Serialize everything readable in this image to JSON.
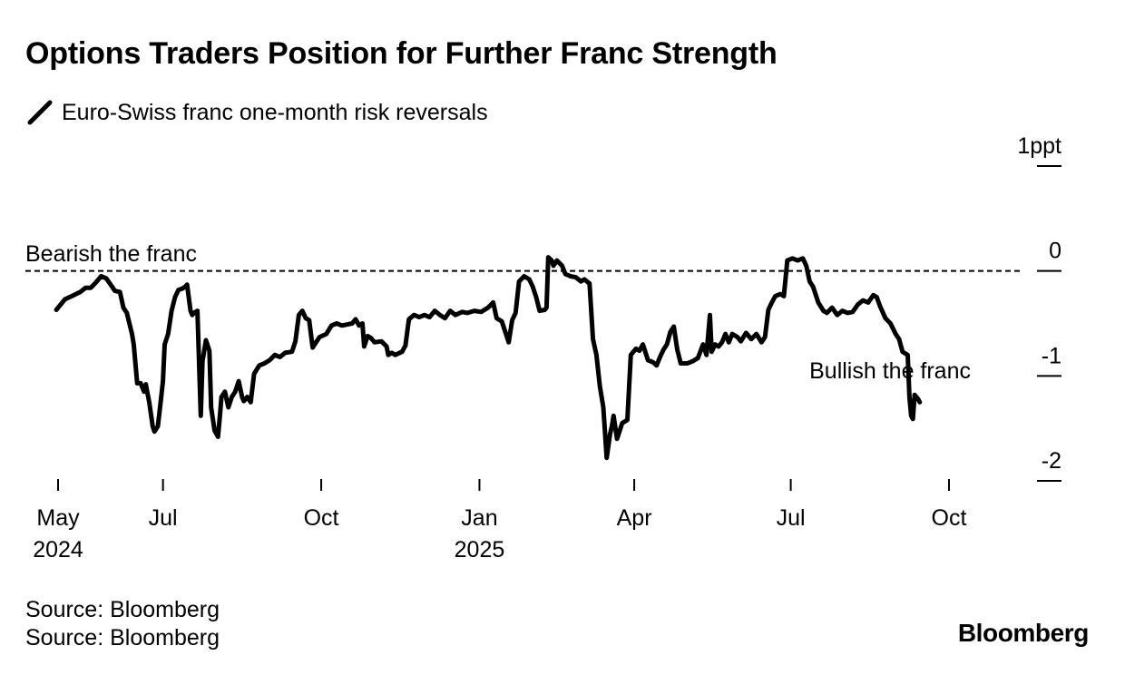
{
  "title": "Options Traders Position for Further Franc Strength",
  "legend": {
    "label": "Euro-Swiss franc one-month risk reversals",
    "icon": "line-swatch-icon"
  },
  "source_lines": [
    "Source: Bloomberg",
    "Source: Bloomberg"
  ],
  "brand": "Bloomberg",
  "colors": {
    "line": "#000000",
    "background": "#ffffff",
    "reference": "#000000"
  },
  "chart_data": {
    "type": "line",
    "title": "Options Traders Position for Further Franc Strength",
    "xlabel": "",
    "ylabel": "",
    "unit": "ppt",
    "ylim": [
      -2,
      1
    ],
    "yticks": [
      {
        "value": 1,
        "label": "1ppt"
      },
      {
        "value": 0,
        "label": "0"
      },
      {
        "value": -1,
        "label": "-1"
      },
      {
        "value": -2,
        "label": "-2"
      }
    ],
    "xlim": [
      "2024-05-01",
      "2025-11-05"
    ],
    "xticks": [
      {
        "date": "2024-05-01",
        "label": "May",
        "sublabel": "2024"
      },
      {
        "date": "2024-07-01",
        "label": "Jul",
        "sublabel": ""
      },
      {
        "date": "2024-10-01",
        "label": "Oct",
        "sublabel": ""
      },
      {
        "date": "2025-01-01",
        "label": "Jan",
        "sublabel": "2025"
      },
      {
        "date": "2025-04-01",
        "label": "Apr",
        "sublabel": ""
      },
      {
        "date": "2025-07-01",
        "label": "Jul",
        "sublabel": ""
      },
      {
        "date": "2025-10-01",
        "label": "Oct",
        "sublabel": ""
      }
    ],
    "grid": false,
    "legend_position": "top-left",
    "y_axis_side": "right",
    "reference_line": {
      "value": 0,
      "style": "dashed"
    },
    "annotations": [
      {
        "text": "Bearish the franc",
        "position": "above reference line, left"
      },
      {
        "text": "Bullish the franc",
        "position": "below reference line, right"
      }
    ],
    "series": [
      {
        "name": "Euro-Swiss franc one-month risk reversals",
        "points": [
          [
            "2024-04-30",
            -0.37
          ],
          [
            "2024-05-02",
            -0.33
          ],
          [
            "2024-05-05",
            -0.27
          ],
          [
            "2024-05-09",
            -0.24
          ],
          [
            "2024-05-14",
            -0.2
          ],
          [
            "2024-05-17",
            -0.16
          ],
          [
            "2024-05-20",
            -0.16
          ],
          [
            "2024-05-23",
            -0.11
          ],
          [
            "2024-05-26",
            -0.05
          ],
          [
            "2024-05-29",
            -0.07
          ],
          [
            "2024-06-01",
            -0.14
          ],
          [
            "2024-06-03",
            -0.19
          ],
          [
            "2024-06-06",
            -0.2
          ],
          [
            "2024-06-08",
            -0.35
          ],
          [
            "2024-06-10",
            -0.4
          ],
          [
            "2024-06-13",
            -0.6
          ],
          [
            "2024-06-14",
            -0.7
          ],
          [
            "2024-06-16",
            -1.07
          ],
          [
            "2024-06-18",
            -1.07
          ],
          [
            "2024-06-20",
            -1.15
          ],
          [
            "2024-06-21",
            -1.08
          ],
          [
            "2024-06-23",
            -1.25
          ],
          [
            "2024-06-25",
            -1.48
          ],
          [
            "2024-06-26",
            -1.53
          ],
          [
            "2024-06-28",
            -1.48
          ],
          [
            "2024-06-30",
            -1.2
          ],
          [
            "2024-07-01",
            -1.05
          ],
          [
            "2024-07-02",
            -0.7
          ],
          [
            "2024-07-04",
            -0.6
          ],
          [
            "2024-07-06",
            -0.38
          ],
          [
            "2024-07-08",
            -0.25
          ],
          [
            "2024-07-10",
            -0.18
          ],
          [
            "2024-07-12",
            -0.17
          ],
          [
            "2024-07-14",
            -0.15
          ],
          [
            "2024-07-15",
            -0.13
          ],
          [
            "2024-07-17",
            -0.38
          ],
          [
            "2024-07-18",
            -0.42
          ],
          [
            "2024-07-19",
            -0.4
          ],
          [
            "2024-07-21",
            -0.38
          ],
          [
            "2024-07-23",
            -1.38
          ],
          [
            "2024-07-24",
            -0.86
          ],
          [
            "2024-07-25",
            -0.76
          ],
          [
            "2024-07-26",
            -0.66
          ],
          [
            "2024-07-28",
            -0.76
          ],
          [
            "2024-07-29",
            -1.3
          ],
          [
            "2024-07-31",
            -1.52
          ],
          [
            "2024-08-02",
            -1.58
          ],
          [
            "2024-08-03",
            -1.4
          ],
          [
            "2024-08-04",
            -1.2
          ],
          [
            "2024-08-06",
            -1.15
          ],
          [
            "2024-08-08",
            -1.3
          ],
          [
            "2024-08-10",
            -1.2
          ],
          [
            "2024-08-12",
            -1.15
          ],
          [
            "2024-08-14",
            -1.05
          ],
          [
            "2024-08-16",
            -1.2
          ],
          [
            "2024-08-17",
            -1.24
          ],
          [
            "2024-08-19",
            -1.2
          ],
          [
            "2024-08-21",
            -1.25
          ],
          [
            "2024-08-23",
            -0.98
          ],
          [
            "2024-08-26",
            -0.9
          ],
          [
            "2024-08-29",
            -0.88
          ],
          [
            "2024-09-01",
            -0.85
          ],
          [
            "2024-09-04",
            -0.8
          ],
          [
            "2024-09-07",
            -0.82
          ],
          [
            "2024-09-10",
            -0.78
          ],
          [
            "2024-09-14",
            -0.77
          ],
          [
            "2024-09-16",
            -0.67
          ],
          [
            "2024-09-18",
            -0.42
          ],
          [
            "2024-09-20",
            -0.38
          ],
          [
            "2024-09-22",
            -0.45
          ],
          [
            "2024-09-24",
            -0.47
          ],
          [
            "2024-09-26",
            -0.73
          ],
          [
            "2024-09-28",
            -0.68
          ],
          [
            "2024-09-30",
            -0.63
          ],
          [
            "2024-10-04",
            -0.6
          ],
          [
            "2024-10-07",
            -0.52
          ],
          [
            "2024-10-10",
            -0.5
          ],
          [
            "2024-10-13",
            -0.52
          ],
          [
            "2024-10-16",
            -0.51
          ],
          [
            "2024-10-19",
            -0.5
          ],
          [
            "2024-10-21",
            -0.46
          ],
          [
            "2024-10-23",
            -0.52
          ],
          [
            "2024-10-25",
            -0.5
          ],
          [
            "2024-10-26",
            -0.72
          ],
          [
            "2024-10-28",
            -0.62
          ],
          [
            "2024-10-30",
            -0.64
          ],
          [
            "2024-11-01",
            -0.68
          ],
          [
            "2024-11-05",
            -0.67
          ],
          [
            "2024-11-08",
            -0.72
          ],
          [
            "2024-11-09",
            -0.8
          ],
          [
            "2024-11-11",
            -0.78
          ],
          [
            "2024-11-13",
            -0.8
          ],
          [
            "2024-11-17",
            -0.77
          ],
          [
            "2024-11-19",
            -0.71
          ],
          [
            "2024-11-21",
            -0.46
          ],
          [
            "2024-11-24",
            -0.42
          ],
          [
            "2024-11-27",
            -0.44
          ],
          [
            "2024-11-30",
            -0.42
          ],
          [
            "2024-12-03",
            -0.44
          ],
          [
            "2024-12-06",
            -0.38
          ],
          [
            "2024-12-09",
            -0.42
          ],
          [
            "2024-12-12",
            -0.45
          ],
          [
            "2024-12-15",
            -0.38
          ],
          [
            "2024-12-18",
            -0.42
          ],
          [
            "2024-12-22",
            -0.39
          ],
          [
            "2024-12-25",
            -0.4
          ],
          [
            "2024-12-29",
            -0.38
          ],
          [
            "2025-01-02",
            -0.39
          ],
          [
            "2025-01-06",
            -0.35
          ],
          [
            "2025-01-09",
            -0.3
          ],
          [
            "2025-01-11",
            -0.45
          ],
          [
            "2025-01-14",
            -0.48
          ],
          [
            "2025-01-17",
            -0.63
          ],
          [
            "2025-01-18",
            -0.68
          ],
          [
            "2025-01-20",
            -0.47
          ],
          [
            "2025-01-22",
            -0.4
          ],
          [
            "2025-01-24",
            -0.1
          ],
          [
            "2025-01-27",
            -0.05
          ],
          [
            "2025-01-30",
            -0.08
          ],
          [
            "2025-02-01",
            -0.15
          ],
          [
            "2025-02-03",
            -0.25
          ],
          [
            "2025-02-05",
            -0.38
          ],
          [
            "2025-02-08",
            -0.37
          ],
          [
            "2025-02-09",
            -0.35
          ],
          [
            "2025-02-10",
            0.13
          ],
          [
            "2025-02-12",
            0.1
          ],
          [
            "2025-02-13",
            0.05
          ],
          [
            "2025-02-15",
            0.1
          ],
          [
            "2025-02-18",
            0.05
          ],
          [
            "2025-02-20",
            -0.03
          ],
          [
            "2025-02-23",
            -0.05
          ],
          [
            "2025-02-26",
            -0.06
          ],
          [
            "2025-03-01",
            -0.1
          ],
          [
            "2025-03-03",
            -0.08
          ],
          [
            "2025-03-06",
            -0.12
          ],
          [
            "2025-03-08",
            -0.65
          ],
          [
            "2025-03-10",
            -0.8
          ],
          [
            "2025-03-12",
            -1.1
          ],
          [
            "2025-03-14",
            -1.3
          ],
          [
            "2025-03-16",
            -1.78
          ],
          [
            "2025-03-18",
            -1.55
          ],
          [
            "2025-03-19",
            -1.48
          ],
          [
            "2025-03-20",
            -1.38
          ],
          [
            "2025-03-22",
            -1.6
          ],
          [
            "2025-03-25",
            -1.45
          ],
          [
            "2025-03-28",
            -1.42
          ],
          [
            "2025-03-30",
            -0.8
          ],
          [
            "2025-04-02",
            -0.74
          ],
          [
            "2025-04-04",
            -0.76
          ],
          [
            "2025-04-06",
            -0.7
          ],
          [
            "2025-04-09",
            -0.85
          ],
          [
            "2025-04-12",
            -0.87
          ],
          [
            "2025-04-14",
            -0.9
          ],
          [
            "2025-04-16",
            -0.82
          ],
          [
            "2025-04-18",
            -0.75
          ],
          [
            "2025-04-20",
            -0.7
          ],
          [
            "2025-04-22",
            -0.58
          ],
          [
            "2025-04-24",
            -0.53
          ],
          [
            "2025-04-26",
            -0.75
          ],
          [
            "2025-04-28",
            -0.88
          ],
          [
            "2025-05-02",
            -0.88
          ],
          [
            "2025-05-05",
            -0.86
          ],
          [
            "2025-05-08",
            -0.83
          ],
          [
            "2025-05-11",
            -0.7
          ],
          [
            "2025-05-13",
            -0.8
          ],
          [
            "2025-05-15",
            -0.42
          ],
          [
            "2025-05-16",
            -0.77
          ],
          [
            "2025-05-18",
            -0.7
          ],
          [
            "2025-05-20",
            -0.72
          ],
          [
            "2025-05-22",
            -0.68
          ],
          [
            "2025-05-24",
            -0.6
          ],
          [
            "2025-05-26",
            -0.68
          ],
          [
            "2025-05-28",
            -0.6
          ],
          [
            "2025-05-31",
            -0.63
          ],
          [
            "2025-06-02",
            -0.67
          ],
          [
            "2025-06-05",
            -0.59
          ],
          [
            "2025-06-08",
            -0.65
          ],
          [
            "2025-06-11",
            -0.6
          ],
          [
            "2025-06-14",
            -0.68
          ],
          [
            "2025-06-16",
            -0.63
          ],
          [
            "2025-06-18",
            -0.37
          ],
          [
            "2025-06-20",
            -0.3
          ],
          [
            "2025-06-22",
            -0.24
          ],
          [
            "2025-06-25",
            -0.22
          ],
          [
            "2025-06-27",
            -0.24
          ],
          [
            "2025-06-29",
            0.1
          ],
          [
            "2025-07-02",
            0.12
          ],
          [
            "2025-07-05",
            0.1
          ],
          [
            "2025-07-08",
            0.12
          ],
          [
            "2025-07-10",
            0.05
          ],
          [
            "2025-07-12",
            -0.1
          ],
          [
            "2025-07-14",
            -0.15
          ],
          [
            "2025-07-17",
            -0.3
          ],
          [
            "2025-07-20",
            -0.38
          ],
          [
            "2025-07-22",
            -0.4
          ],
          [
            "2025-07-25",
            -0.35
          ],
          [
            "2025-07-28",
            -0.42
          ],
          [
            "2025-07-31",
            -0.38
          ],
          [
            "2025-08-03",
            -0.4
          ],
          [
            "2025-08-06",
            -0.39
          ],
          [
            "2025-08-09",
            -0.32
          ],
          [
            "2025-08-12",
            -0.28
          ],
          [
            "2025-08-15",
            -0.3
          ],
          [
            "2025-08-18",
            -0.23
          ],
          [
            "2025-08-20",
            -0.25
          ],
          [
            "2025-08-22",
            -0.34
          ],
          [
            "2025-08-25",
            -0.45
          ],
          [
            "2025-08-28",
            -0.5
          ],
          [
            "2025-08-31",
            -0.6
          ],
          [
            "2025-09-02",
            -0.65
          ],
          [
            "2025-09-04",
            -0.77
          ],
          [
            "2025-09-07",
            -0.8
          ],
          [
            "2025-09-08",
            -1.2
          ],
          [
            "2025-09-09",
            -1.38
          ],
          [
            "2025-09-10",
            -1.41
          ],
          [
            "2025-09-11",
            -1.18
          ],
          [
            "2025-09-13",
            -1.22
          ],
          [
            "2025-09-14",
            -1.25
          ]
        ]
      }
    ]
  }
}
